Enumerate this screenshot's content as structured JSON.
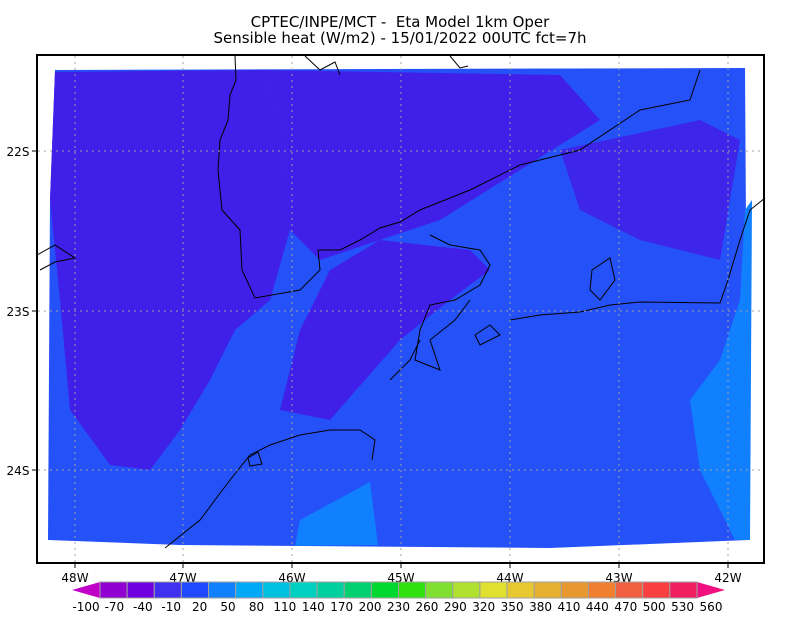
{
  "header": {
    "title_line1": "CPTEC/INPE/MCT -  Eta Model 1km Oper",
    "title_line2": "Sensible heat (W/m2) - 15/01/2022 00UTC fct=7h"
  },
  "map": {
    "lon_labels": [
      "48W",
      "47W",
      "46W",
      "45W",
      "44W",
      "43W",
      "42W"
    ],
    "lat_labels": [
      "22S",
      "23S",
      "24S"
    ],
    "field_colors": {
      "dominant": "#2452f8",
      "purple": "#4020e8",
      "light_blue": "#1080ff"
    }
  },
  "colorbar": {
    "labels": [
      "-100",
      "-70",
      "-40",
      "-10",
      "20",
      "50",
      "80",
      "110",
      "140",
      "170",
      "200",
      "230",
      "260",
      "290",
      "320",
      "350",
      "380",
      "410",
      "440",
      "470",
      "500",
      "530",
      "560"
    ],
    "colors": [
      "#c000c8",
      "#9000d0",
      "#7000e0",
      "#4030f0",
      "#2048ff",
      "#1080ff",
      "#00a8f8",
      "#00c0e0",
      "#00d0c0",
      "#00d0a0",
      "#00d070",
      "#00d830",
      "#30e010",
      "#80e030",
      "#b0e030",
      "#e0e030",
      "#e8c830",
      "#e8b030",
      "#e89830",
      "#f08030",
      "#f06040",
      "#f84040",
      "#f02060",
      "#f01080"
    ]
  }
}
